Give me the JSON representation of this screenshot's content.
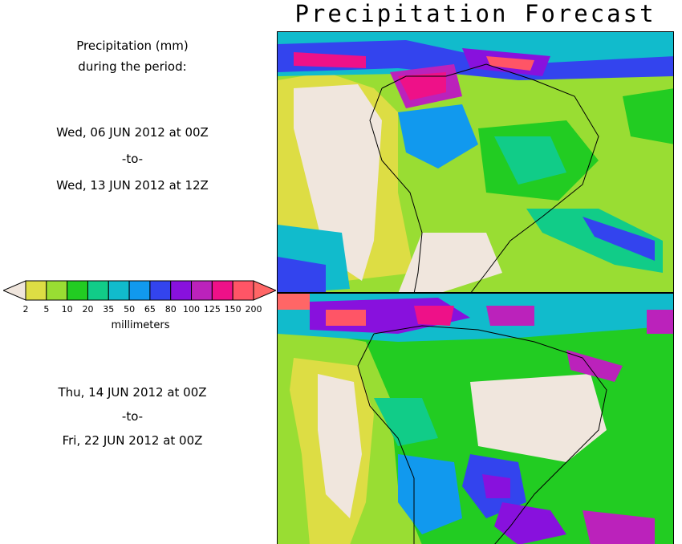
{
  "title": "Precipitation Forecast",
  "intro": {
    "line1": "Precipitation (mm)",
    "line2": "during the period:"
  },
  "period1": {
    "start": "Wed, 06 JUN 2012 at 00Z",
    "sep": "-to-",
    "end": "Wed, 13 JUN 2012 at 12Z"
  },
  "period2": {
    "start": "Thu, 14 JUN 2012 at 00Z",
    "sep": "-to-",
    "end": "Fri, 22 JUN 2012 at 00Z"
  },
  "legend": {
    "unit": "millimeters",
    "ticks": [
      "2",
      "5",
      "10",
      "20",
      "35",
      "50",
      "65",
      "80",
      "100",
      "125",
      "150",
      "200"
    ],
    "colors": [
      "#f0e6dd",
      "#dddd44",
      "#99dd33",
      "#22cc22",
      "#11cc88",
      "#11bbcc",
      "#1199ee",
      "#3344ee",
      "#8811dd",
      "#bb22bb",
      "#ee1188",
      "#ff5566",
      "#ff6666"
    ]
  }
}
